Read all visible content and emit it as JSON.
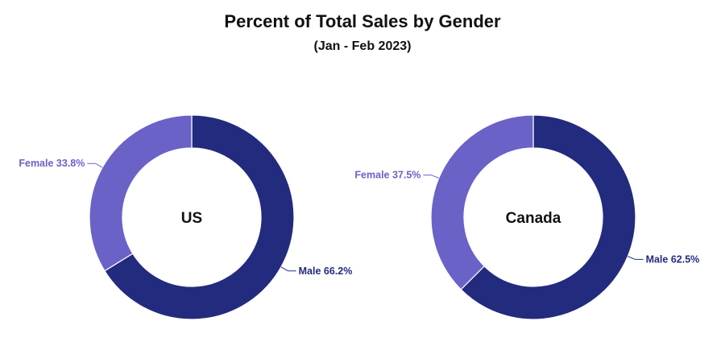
{
  "title": "Percent of Total Sales by Gender",
  "subtitle": "(Jan - Feb 2023)",
  "colors": {
    "male": "#232b7e",
    "female": "#6b62c8"
  },
  "chart_data": [
    {
      "type": "pie",
      "center_label": "US",
      "categories": [
        "Male",
        "Female"
      ],
      "values": [
        66.2,
        33.8
      ],
      "labels": [
        "Male 66.2%",
        "Female 33.8%"
      ]
    },
    {
      "type": "pie",
      "center_label": "Canada",
      "categories": [
        "Male",
        "Female"
      ],
      "values": [
        62.5,
        37.5
      ],
      "labels": [
        "Male 62.5%",
        "Female 37.5%"
      ]
    }
  ]
}
